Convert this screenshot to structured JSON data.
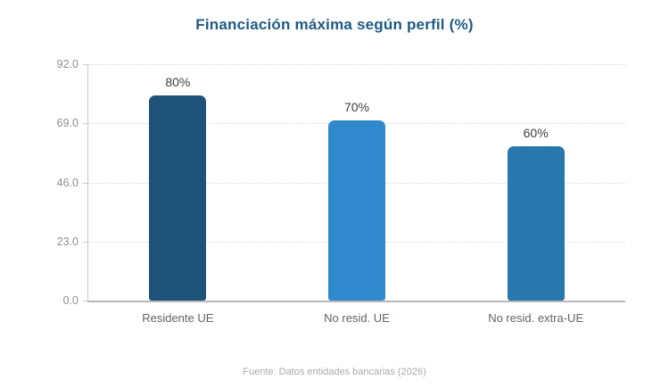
{
  "chart_data": {
    "type": "bar",
    "title": "Financiación máxima según perfil (%)",
    "title_color": "#1f5b84",
    "categories": [
      "Residente UE",
      "No resid. UE",
      "No resid. extra-UE"
    ],
    "values": [
      80,
      70,
      60
    ],
    "value_labels": [
      "80%",
      "70%",
      "60%"
    ],
    "bar_colors": [
      "#1f5278",
      "#3089cc",
      "#2978ab"
    ],
    "xlabel": "",
    "ylabel": "",
    "ylim": [
      0,
      92
    ],
    "y_tick_values": [
      0,
      23,
      46,
      69,
      92
    ],
    "y_tick_labels": [
      "0.0",
      "23.0",
      "46.0",
      "69.0",
      "92.0"
    ],
    "grid": "horizontal-dotted",
    "legend": "none",
    "source_note": "Fuente: Datos entidades bancarias (2026)"
  }
}
